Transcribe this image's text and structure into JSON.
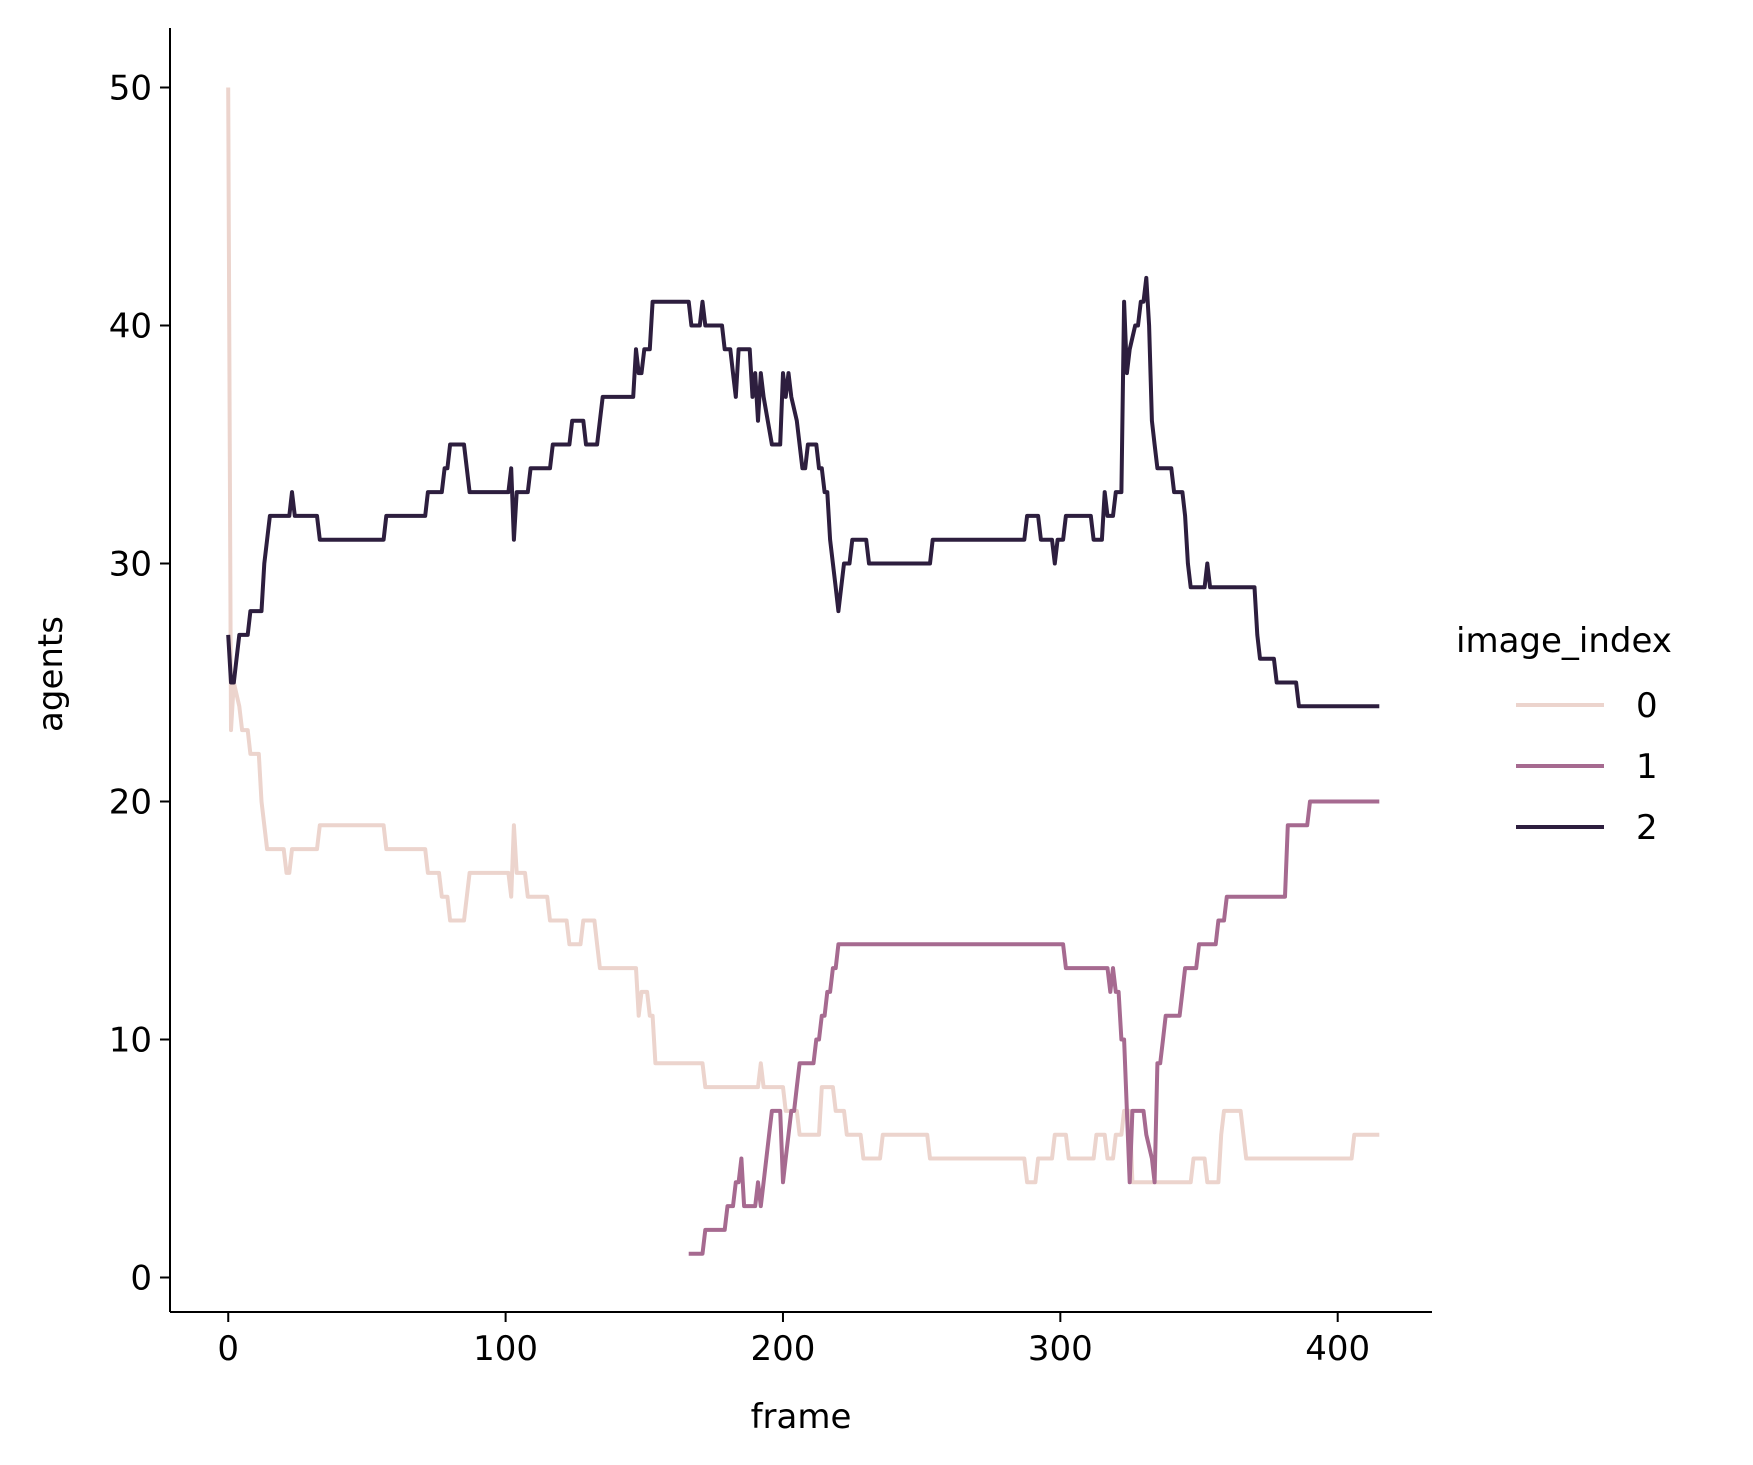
{
  "chart_data": {
    "type": "line",
    "title": "",
    "xlabel": "frame",
    "ylabel": "agents",
    "xlim": [
      -21,
      434
    ],
    "ylim": [
      -1.45,
      52.5
    ],
    "xticks": [
      0,
      100,
      200,
      300,
      400
    ],
    "yticks": [
      0,
      10,
      20,
      30,
      40,
      50
    ],
    "xtick_labels": [
      "0",
      "100",
      "200",
      "300",
      "400"
    ],
    "ytick_labels": [
      "0",
      "10",
      "20",
      "30",
      "40",
      "50"
    ],
    "grid": false,
    "legend_title": "image_index",
    "legend_position": "right",
    "series": [
      {
        "name": "0",
        "color": "#ecd4cd",
        "points": [
          [
            0,
            50
          ],
          [
            1,
            23
          ],
          [
            2,
            25
          ],
          [
            4,
            24
          ],
          [
            5,
            23
          ],
          [
            7,
            23
          ],
          [
            8,
            22
          ],
          [
            11,
            22
          ],
          [
            12,
            20
          ],
          [
            14,
            18
          ],
          [
            20,
            18
          ],
          [
            21,
            17
          ],
          [
            22,
            17
          ],
          [
            23,
            18
          ],
          [
            32,
            18
          ],
          [
            33,
            19
          ],
          [
            56,
            19
          ],
          [
            57,
            18
          ],
          [
            71,
            18
          ],
          [
            72,
            17
          ],
          [
            76,
            17
          ],
          [
            77,
            16
          ],
          [
            79,
            16
          ],
          [
            80,
            15
          ],
          [
            85,
            15
          ],
          [
            86,
            16
          ],
          [
            87,
            17
          ],
          [
            101,
            17
          ],
          [
            102,
            16
          ],
          [
            103,
            19
          ],
          [
            104,
            17
          ],
          [
            107,
            17
          ],
          [
            108,
            16
          ],
          [
            115,
            16
          ],
          [
            116,
            15
          ],
          [
            122,
            15
          ],
          [
            123,
            14
          ],
          [
            127,
            14
          ],
          [
            128,
            15
          ],
          [
            132,
            15
          ],
          [
            133,
            14
          ],
          [
            134,
            13
          ],
          [
            147,
            13
          ],
          [
            148,
            11
          ],
          [
            149,
            12
          ],
          [
            151,
            12
          ],
          [
            152,
            11
          ],
          [
            153,
            11
          ],
          [
            154,
            9
          ],
          [
            171,
            9
          ],
          [
            172,
            8
          ],
          [
            191,
            8
          ],
          [
            192,
            9
          ],
          [
            193,
            8
          ],
          [
            200,
            8
          ],
          [
            201,
            7
          ],
          [
            205,
            7
          ],
          [
            206,
            6
          ],
          [
            213,
            6
          ],
          [
            214,
            8
          ],
          [
            218,
            8
          ],
          [
            219,
            7
          ],
          [
            222,
            7
          ],
          [
            223,
            6
          ],
          [
            228,
            6
          ],
          [
            229,
            5
          ],
          [
            235,
            5
          ],
          [
            236,
            6
          ],
          [
            252,
            6
          ],
          [
            253,
            5
          ],
          [
            287,
            5
          ],
          [
            288,
            4
          ],
          [
            291,
            4
          ],
          [
            292,
            5
          ],
          [
            297,
            5
          ],
          [
            298,
            6
          ],
          [
            302,
            6
          ],
          [
            303,
            5
          ],
          [
            312,
            5
          ],
          [
            313,
            6
          ],
          [
            316,
            6
          ],
          [
            317,
            5
          ],
          [
            319,
            5
          ],
          [
            320,
            6
          ],
          [
            322,
            6
          ],
          [
            323,
            7
          ],
          [
            325,
            7
          ],
          [
            326,
            4
          ],
          [
            347,
            4
          ],
          [
            348,
            5
          ],
          [
            352,
            5
          ],
          [
            353,
            4
          ],
          [
            357,
            4
          ],
          [
            358,
            6
          ],
          [
            359,
            7
          ],
          [
            365,
            7
          ],
          [
            366,
            6
          ],
          [
            367,
            5
          ],
          [
            405,
            5
          ],
          [
            406,
            6
          ],
          [
            415,
            6
          ]
        ]
      },
      {
        "name": "1",
        "color": "#a66a90",
        "points": [
          [
            166,
            1
          ],
          [
            171,
            1
          ],
          [
            172,
            2
          ],
          [
            179,
            2
          ],
          [
            180,
            3
          ],
          [
            182,
            3
          ],
          [
            183,
            4
          ],
          [
            184,
            4
          ],
          [
            185,
            5
          ],
          [
            186,
            3
          ],
          [
            190,
            3
          ],
          [
            191,
            4
          ],
          [
            192,
            3
          ],
          [
            193,
            4
          ],
          [
            195,
            6
          ],
          [
            196,
            7
          ],
          [
            199,
            7
          ],
          [
            200,
            4
          ],
          [
            201,
            5
          ],
          [
            202,
            6
          ],
          [
            203,
            7
          ],
          [
            204,
            7
          ],
          [
            205,
            8
          ],
          [
            206,
            9
          ],
          [
            211,
            9
          ],
          [
            212,
            10
          ],
          [
            213,
            10
          ],
          [
            214,
            11
          ],
          [
            215,
            11
          ],
          [
            216,
            12
          ],
          [
            217,
            12
          ],
          [
            218,
            13
          ],
          [
            219,
            13
          ],
          [
            220,
            14
          ],
          [
            301,
            14
          ],
          [
            302,
            13
          ],
          [
            317,
            13
          ],
          [
            318,
            12
          ],
          [
            319,
            13
          ],
          [
            320,
            12
          ],
          [
            321,
            12
          ],
          [
            322,
            10
          ],
          [
            323,
            10
          ],
          [
            324,
            7
          ],
          [
            325,
            4
          ],
          [
            326,
            7
          ],
          [
            330,
            7
          ],
          [
            331,
            6
          ],
          [
            333,
            5
          ],
          [
            334,
            4
          ],
          [
            335,
            9
          ],
          [
            336,
            9
          ],
          [
            337,
            10
          ],
          [
            338,
            11
          ],
          [
            343,
            11
          ],
          [
            344,
            12
          ],
          [
            345,
            13
          ],
          [
            349,
            13
          ],
          [
            350,
            14
          ],
          [
            356,
            14
          ],
          [
            357,
            15
          ],
          [
            359,
            15
          ],
          [
            360,
            16
          ],
          [
            381,
            16
          ],
          [
            382,
            19
          ],
          [
            389,
            19
          ],
          [
            390,
            20
          ],
          [
            415,
            20
          ]
        ]
      },
      {
        "name": "2",
        "color": "#2d1e3e",
        "points": [
          [
            0,
            27
          ],
          [
            1,
            25
          ],
          [
            2,
            25
          ],
          [
            4,
            27
          ],
          [
            7,
            27
          ],
          [
            8,
            28
          ],
          [
            12,
            28
          ],
          [
            13,
            30
          ],
          [
            14,
            31
          ],
          [
            15,
            32
          ],
          [
            22,
            32
          ],
          [
            23,
            33
          ],
          [
            24,
            32
          ],
          [
            32,
            32
          ],
          [
            33,
            31
          ],
          [
            56,
            31
          ],
          [
            57,
            32
          ],
          [
            71,
            32
          ],
          [
            72,
            33
          ],
          [
            77,
            33
          ],
          [
            78,
            34
          ],
          [
            79,
            34
          ],
          [
            80,
            35
          ],
          [
            85,
            35
          ],
          [
            86,
            34
          ],
          [
            87,
            33
          ],
          [
            101,
            33
          ],
          [
            102,
            34
          ],
          [
            103,
            31
          ],
          [
            104,
            33
          ],
          [
            108,
            33
          ],
          [
            109,
            34
          ],
          [
            116,
            34
          ],
          [
            117,
            35
          ],
          [
            123,
            35
          ],
          [
            124,
            36
          ],
          [
            128,
            36
          ],
          [
            129,
            35
          ],
          [
            133,
            35
          ],
          [
            134,
            36
          ],
          [
            135,
            37
          ],
          [
            146,
            37
          ],
          [
            147,
            39
          ],
          [
            148,
            38
          ],
          [
            149,
            38
          ],
          [
            150,
            39
          ],
          [
            152,
            39
          ],
          [
            153,
            41
          ],
          [
            166,
            41
          ],
          [
            167,
            40
          ],
          [
            170,
            40
          ],
          [
            171,
            41
          ],
          [
            172,
            40
          ],
          [
            178,
            40
          ],
          [
            179,
            39
          ],
          [
            181,
            39
          ],
          [
            182,
            38
          ],
          [
            183,
            37
          ],
          [
            184,
            39
          ],
          [
            188,
            39
          ],
          [
            189,
            37
          ],
          [
            190,
            38
          ],
          [
            191,
            36
          ],
          [
            192,
            38
          ],
          [
            193,
            37
          ],
          [
            196,
            35
          ],
          [
            199,
            35
          ],
          [
            200,
            38
          ],
          [
            201,
            37
          ],
          [
            202,
            38
          ],
          [
            203,
            37
          ],
          [
            205,
            36
          ],
          [
            206,
            35
          ],
          [
            207,
            34
          ],
          [
            208,
            34
          ],
          [
            209,
            35
          ],
          [
            212,
            35
          ],
          [
            213,
            34
          ],
          [
            214,
            34
          ],
          [
            215,
            33
          ],
          [
            216,
            33
          ],
          [
            217,
            31
          ],
          [
            218,
            30
          ],
          [
            219,
            29
          ],
          [
            220,
            28
          ],
          [
            221,
            29
          ],
          [
            222,
            30
          ],
          [
            224,
            30
          ],
          [
            225,
            31
          ],
          [
            230,
            31
          ],
          [
            231,
            30
          ],
          [
            253,
            30
          ],
          [
            254,
            31
          ],
          [
            287,
            31
          ],
          [
            288,
            32
          ],
          [
            292,
            32
          ],
          [
            293,
            31
          ],
          [
            297,
            31
          ],
          [
            298,
            30
          ],
          [
            299,
            31
          ],
          [
            301,
            31
          ],
          [
            302,
            32
          ],
          [
            311,
            32
          ],
          [
            312,
            31
          ],
          [
            315,
            31
          ],
          [
            316,
            33
          ],
          [
            317,
            32
          ],
          [
            319,
            32
          ],
          [
            320,
            33
          ],
          [
            322,
            33
          ],
          [
            323,
            41
          ],
          [
            324,
            38
          ],
          [
            325,
            39
          ],
          [
            327,
            40
          ],
          [
            328,
            40
          ],
          [
            329,
            41
          ],
          [
            330,
            41
          ],
          [
            331,
            42
          ],
          [
            332,
            40
          ],
          [
            333,
            36
          ],
          [
            334,
            35
          ],
          [
            335,
            34
          ],
          [
            340,
            34
          ],
          [
            341,
            33
          ],
          [
            344,
            33
          ],
          [
            345,
            32
          ],
          [
            346,
            30
          ],
          [
            347,
            29
          ],
          [
            352,
            29
          ],
          [
            353,
            30
          ],
          [
            354,
            29
          ],
          [
            370,
            29
          ],
          [
            371,
            27
          ],
          [
            372,
            26
          ],
          [
            377,
            26
          ],
          [
            378,
            25
          ],
          [
            385,
            25
          ],
          [
            386,
            24
          ],
          [
            415,
            24
          ]
        ]
      }
    ]
  }
}
